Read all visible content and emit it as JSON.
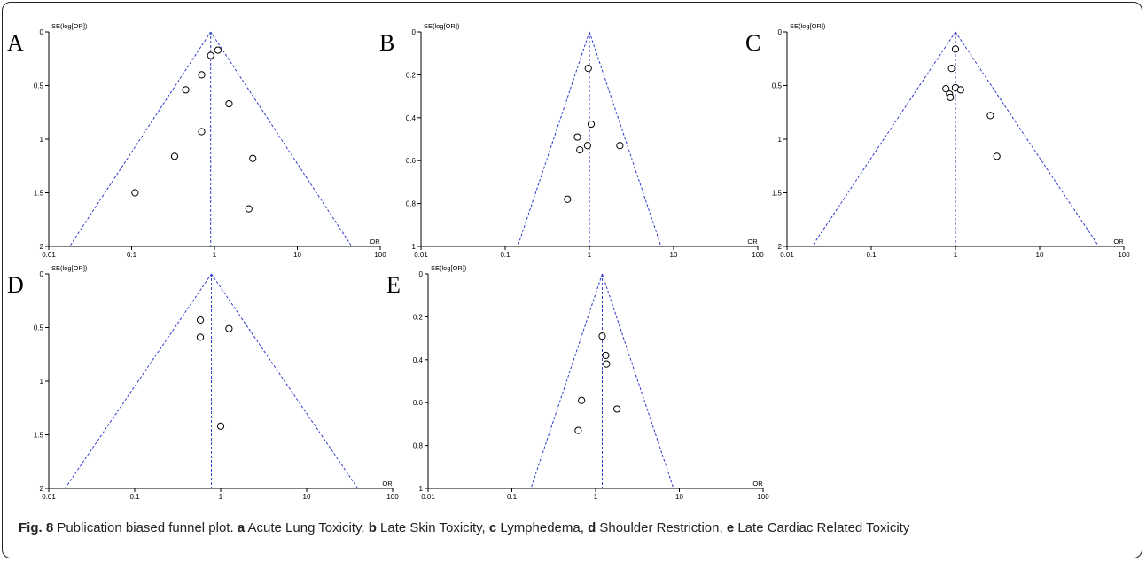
{
  "caption": {
    "fig_label": "Fig. 8",
    "text": " Publication biased funnel plot. ",
    "items": [
      {
        "letter": "a",
        "text": " Acute Lung Toxicity, "
      },
      {
        "letter": "b",
        "text": " Late Skin Toxicity, "
      },
      {
        "letter": "c",
        "text": " Lymphedema, "
      },
      {
        "letter": "d",
        "text": " Shoulder Restriction, "
      },
      {
        "letter": "e",
        "text": " Late Cardiac Related Toxicity"
      }
    ]
  },
  "colors": {
    "funnel": "#2f3cc8",
    "axis": "#000000",
    "point_stroke": "#000000",
    "background": "#ffffff"
  },
  "chart_data": [
    {
      "type": "scatter",
      "panel": "A",
      "ylabel": "SE(log[OR])",
      "xlabel": "OR",
      "x_scale": "log",
      "xlim": [
        0.01,
        100
      ],
      "x_ticks": [
        "0.01",
        "0.1",
        "1",
        "10",
        "100"
      ],
      "ylim": [
        0,
        2
      ],
      "y_reversed": true,
      "y_ticks": [
        "0",
        "0.5",
        "1",
        "1.5",
        "2"
      ],
      "pooled_or": 0.9,
      "points": [
        {
          "x": 1.1,
          "y": 0.17
        },
        {
          "x": 0.9,
          "y": 0.22
        },
        {
          "x": 0.7,
          "y": 0.4
        },
        {
          "x": 0.45,
          "y": 0.54
        },
        {
          "x": 1.5,
          "y": 0.67
        },
        {
          "x": 0.7,
          "y": 0.93
        },
        {
          "x": 0.33,
          "y": 1.16
        },
        {
          "x": 2.9,
          "y": 1.18
        },
        {
          "x": 0.11,
          "y": 1.5
        },
        {
          "x": 2.6,
          "y": 1.65
        }
      ]
    },
    {
      "type": "scatter",
      "panel": "B",
      "ylabel": "SE(log[OR])",
      "xlabel": "OR",
      "x_scale": "log",
      "xlim": [
        0.01,
        100
      ],
      "x_ticks": [
        "0.01",
        "0.1",
        "1",
        "10",
        "100"
      ],
      "ylim": [
        0,
        1
      ],
      "y_reversed": true,
      "y_ticks": [
        "0",
        "0.2",
        "0.4",
        "0.6",
        "0.8",
        "1"
      ],
      "pooled_or": 1.0,
      "points": [
        {
          "x": 0.97,
          "y": 0.17
        },
        {
          "x": 1.05,
          "y": 0.43
        },
        {
          "x": 0.72,
          "y": 0.49
        },
        {
          "x": 0.95,
          "y": 0.53
        },
        {
          "x": 0.77,
          "y": 0.55
        },
        {
          "x": 2.3,
          "y": 0.53
        },
        {
          "x": 0.55,
          "y": 0.78
        }
      ]
    },
    {
      "type": "scatter",
      "panel": "C",
      "ylabel": "SE(log[OR])",
      "xlabel": "OR",
      "x_scale": "log",
      "xlim": [
        0.01,
        100
      ],
      "x_ticks": [
        "0.01",
        "0.1",
        "1",
        "10",
        "100"
      ],
      "ylim": [
        0,
        2
      ],
      "y_reversed": true,
      "y_ticks": [
        "0",
        "0.5",
        "1",
        "1.5",
        "2"
      ],
      "pooled_or": 1.0,
      "points": [
        {
          "x": 1.0,
          "y": 0.16
        },
        {
          "x": 0.9,
          "y": 0.34
        },
        {
          "x": 0.77,
          "y": 0.53
        },
        {
          "x": 1.0,
          "y": 0.52
        },
        {
          "x": 1.15,
          "y": 0.54
        },
        {
          "x": 0.85,
          "y": 0.58
        },
        {
          "x": 0.87,
          "y": 0.61
        },
        {
          "x": 2.6,
          "y": 0.78
        },
        {
          "x": 3.1,
          "y": 1.16
        }
      ]
    },
    {
      "type": "scatter",
      "panel": "D",
      "ylabel": "SE(log[OR])",
      "xlabel": "OR",
      "x_scale": "log",
      "xlim": [
        0.01,
        100
      ],
      "x_ticks": [
        "0.01",
        "0.1",
        "1",
        "10",
        "100"
      ],
      "ylim": [
        0,
        2
      ],
      "y_reversed": true,
      "y_ticks": [
        "0",
        "0.5",
        "1",
        "1.5",
        "2"
      ],
      "pooled_or": 0.78,
      "points": [
        {
          "x": 0.58,
          "y": 0.43
        },
        {
          "x": 1.25,
          "y": 0.51
        },
        {
          "x": 0.58,
          "y": 0.59
        },
        {
          "x": 1.0,
          "y": 1.42
        }
      ]
    },
    {
      "type": "scatter",
      "panel": "E",
      "ylabel": "SE(log[OR])",
      "xlabel": "OR",
      "x_scale": "log",
      "xlim": [
        0.01,
        100
      ],
      "x_ticks": [
        "0.01",
        "0.1",
        "1",
        "10",
        "100"
      ],
      "ylim": [
        0,
        1
      ],
      "y_reversed": true,
      "y_ticks": [
        "0",
        "0.2",
        "0.4",
        "0.6",
        "0.8",
        "1"
      ],
      "pooled_or": 1.2,
      "points": [
        {
          "x": 1.2,
          "y": 0.29
        },
        {
          "x": 1.32,
          "y": 0.38
        },
        {
          "x": 1.35,
          "y": 0.42
        },
        {
          "x": 0.68,
          "y": 0.59
        },
        {
          "x": 1.8,
          "y": 0.63
        },
        {
          "x": 0.62,
          "y": 0.73
        }
      ]
    }
  ]
}
